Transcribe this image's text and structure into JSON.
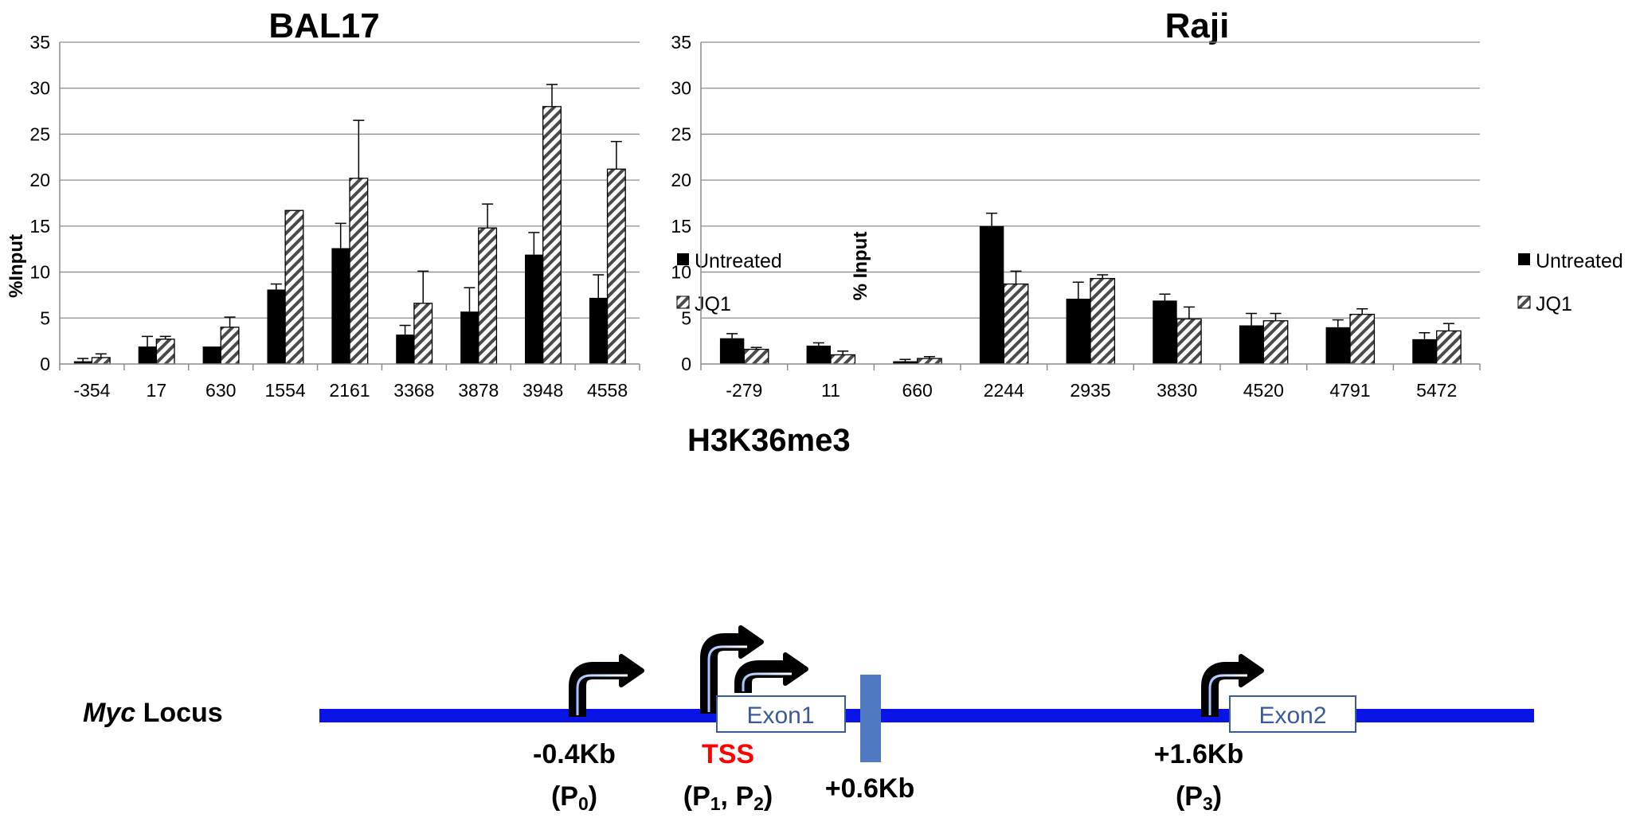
{
  "chart_data": [
    {
      "type": "bar",
      "title": "BAL17",
      "ylabel": "%Input",
      "xlabel": "",
      "ylim": [
        0,
        35
      ],
      "yticks": [
        0,
        5,
        10,
        15,
        20,
        25,
        30,
        35
      ],
      "grid": true,
      "legend_position": "right",
      "categories": [
        "-354",
        "17",
        "630",
        "1554",
        "2161",
        "3368",
        "3878",
        "3948",
        "4558"
      ],
      "series": [
        {
          "name": "Untreated",
          "color": "#000000",
          "pattern": "solid",
          "values": [
            0.3,
            1.9,
            1.9,
            8.1,
            12.6,
            3.2,
            5.7,
            11.9,
            7.2
          ],
          "errors": [
            0.3,
            1.1,
            0.0,
            0.6,
            2.7,
            1.0,
            2.6,
            2.4,
            2.5
          ]
        },
        {
          "name": "JQ1",
          "color": "#555555",
          "pattern": "hatched",
          "values": [
            0.7,
            2.7,
            4.0,
            16.7,
            20.2,
            6.6,
            14.8,
            28.0,
            21.2
          ],
          "errors": [
            0.4,
            0.3,
            1.1,
            0.0,
            6.3,
            3.5,
            2.6,
            2.4,
            3.0
          ]
        }
      ]
    },
    {
      "type": "bar",
      "title": "Raji",
      "ylabel": "% Input",
      "xlabel": "",
      "ylim": [
        0,
        35
      ],
      "yticks": [
        0,
        5,
        10,
        15,
        20,
        25,
        30,
        35
      ],
      "grid": true,
      "legend_position": "right",
      "categories": [
        "-279",
        "11",
        "660",
        "2244",
        "2935",
        "3830",
        "4520",
        "4791",
        "5472"
      ],
      "series": [
        {
          "name": "Untreated",
          "color": "#000000",
          "pattern": "solid",
          "values": [
            2.8,
            2.0,
            0.3,
            15.0,
            7.1,
            6.9,
            4.2,
            4.0,
            2.7
          ],
          "errors": [
            0.5,
            0.3,
            0.2,
            1.4,
            1.8,
            0.7,
            1.3,
            0.8,
            0.7
          ]
        },
        {
          "name": "JQ1",
          "color": "#555555",
          "pattern": "hatched",
          "values": [
            1.6,
            1.0,
            0.6,
            8.7,
            9.3,
            4.9,
            4.7,
            5.4,
            3.6
          ],
          "errors": [
            0.2,
            0.4,
            0.2,
            1.4,
            0.4,
            1.3,
            0.8,
            0.6,
            0.8
          ]
        }
      ]
    }
  ],
  "mark_label": "H3K36me3",
  "diagram": {
    "locus_italic": "Myc",
    "locus_rest": " Locus",
    "line_color": "#0a14e6",
    "exons": [
      "Exon1",
      "Exon2"
    ],
    "labels": {
      "p0_pos": "-0.4Kb",
      "tss": "TSS",
      "p3_pos": "+1.6Kb",
      "mid_pos": "+0.6Kb",
      "tss_color": "#ff0000"
    },
    "promoters": {
      "p0": {
        "open": "(P",
        "sub": "0",
        "close": ")"
      },
      "p12": {
        "open": "(P",
        "sub1": "1",
        "mid": ", P",
        "sub2": "2",
        "close": ")"
      },
      "p3": {
        "open": "(P",
        "sub": "3",
        "close": ")"
      }
    }
  }
}
